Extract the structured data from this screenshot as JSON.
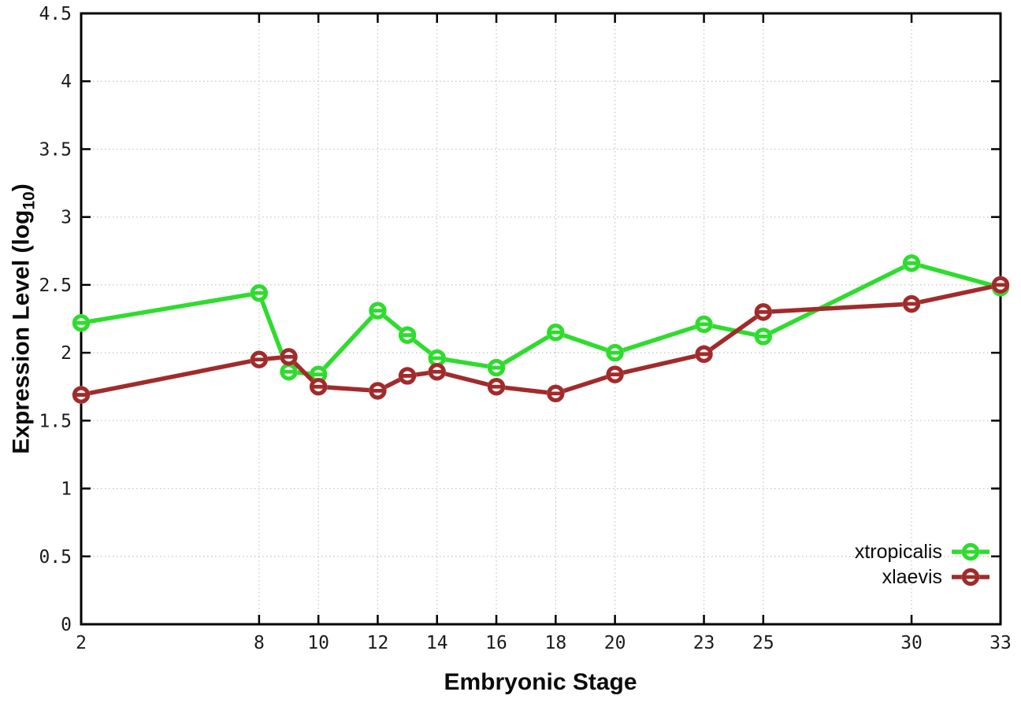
{
  "chart_data": {
    "type": "line",
    "title": "",
    "xlabel": "Embryonic Stage",
    "ylabel": "Expression Level (log10)",
    "ylabel_parts": {
      "main": "Expression Level (log",
      "sub": "10",
      "end": ")"
    },
    "xlim": [
      2,
      33
    ],
    "ylim": [
      0,
      4.5
    ],
    "x_tick_labels": [
      "2",
      "8",
      "10",
      "12",
      "14",
      "16",
      "18",
      "20",
      "23",
      "25",
      "30",
      "33"
    ],
    "y_tick_labels": [
      "0",
      "0.5",
      "1",
      "1.5",
      "2",
      "2.5",
      "3",
      "3.5",
      "4",
      "4.5"
    ],
    "grid": true,
    "legend_position": "bottom-right",
    "colors": {
      "grid": "#c2c2c2",
      "axis": "#000000",
      "tick_text": "#1c1c1c"
    },
    "x": [
      2,
      8,
      9,
      10,
      12,
      13,
      14,
      16,
      18,
      20,
      23,
      25,
      30,
      33
    ],
    "series": [
      {
        "name": "xtropicalis",
        "color": "#2edc2e",
        "values": [
          2.22,
          2.44,
          1.86,
          1.84,
          2.31,
          2.13,
          1.96,
          1.89,
          2.15,
          2.0,
          2.21,
          2.12,
          2.66,
          2.48
        ]
      },
      {
        "name": "xlaevis",
        "color": "#a12b2b",
        "values": [
          1.69,
          1.95,
          1.97,
          1.75,
          1.72,
          1.83,
          1.86,
          1.75,
          1.7,
          1.84,
          1.99,
          2.3,
          2.36,
          2.5
        ]
      }
    ]
  }
}
